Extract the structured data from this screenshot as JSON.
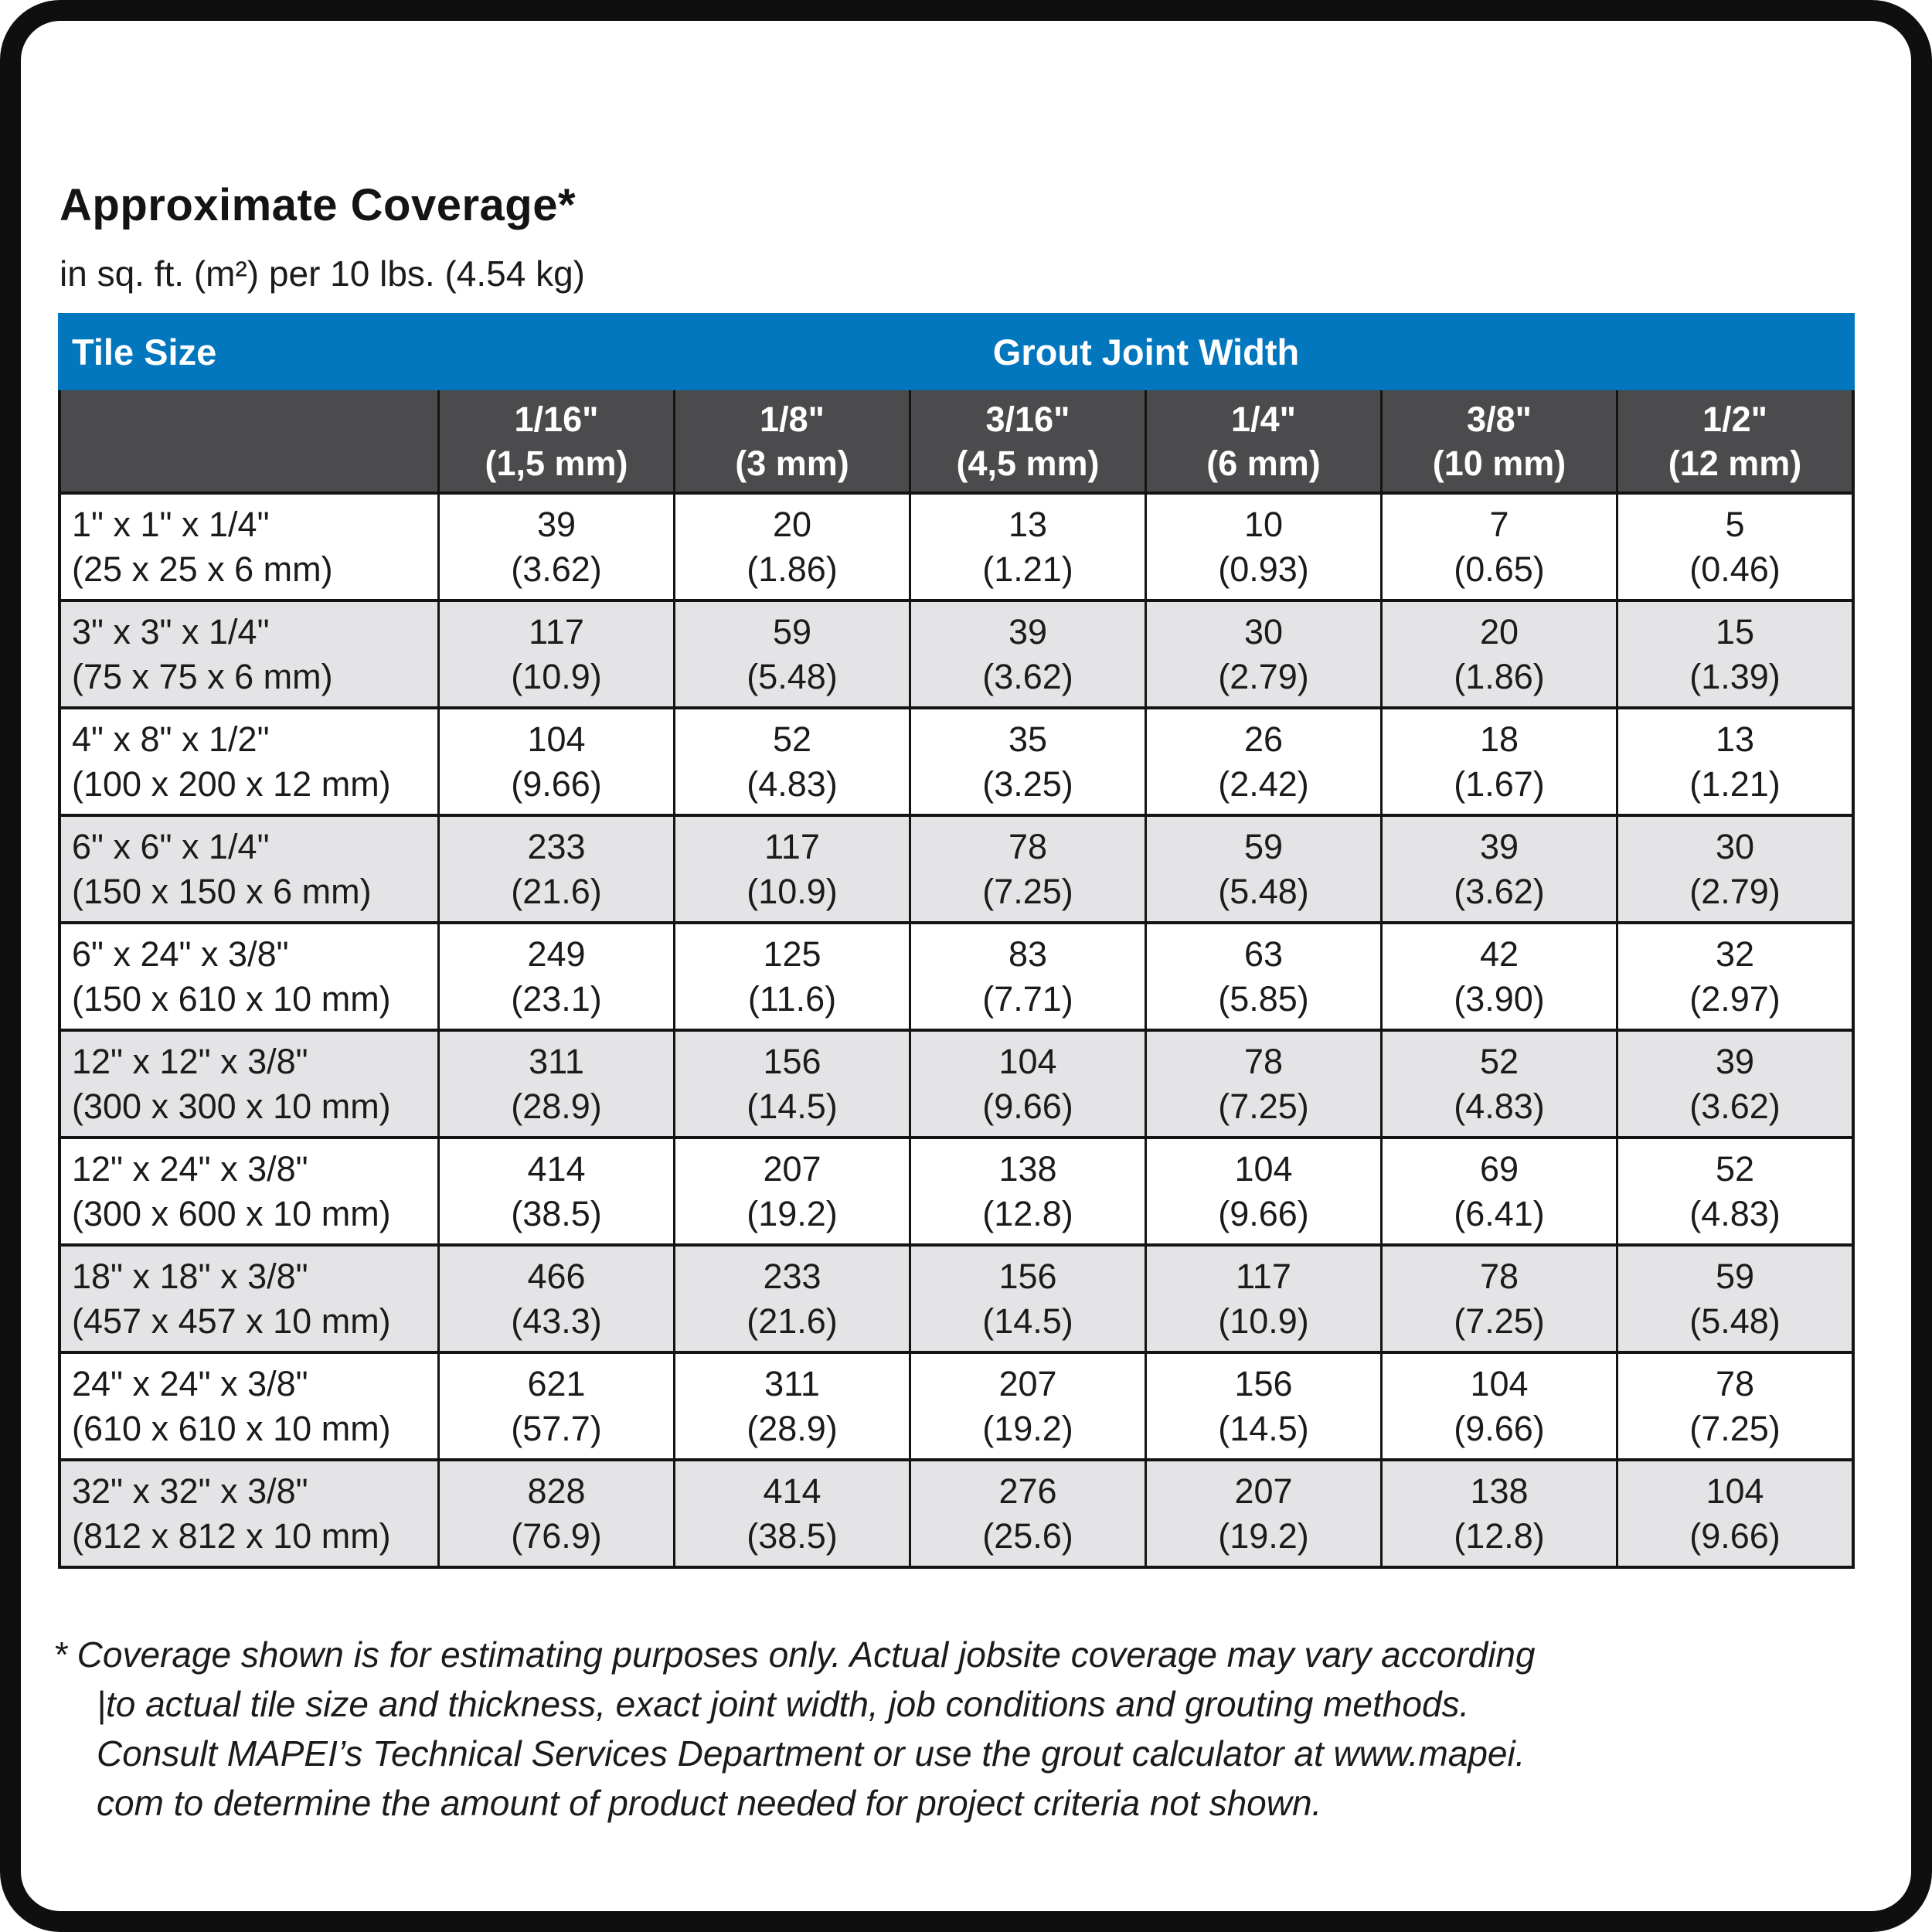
{
  "page": {
    "title": "Approximate Coverage*",
    "subtitle": "in sq. ft. (m²) per 10 lbs. (4.54 kg)"
  },
  "colors": {
    "header_blue": "#0277bd",
    "header_dark_gray": "#4b4b4d",
    "row_stripe_gray": "#e4e4e6",
    "border_black": "#141414"
  },
  "table": {
    "corner_label": "Tile Size",
    "group_header": "Grout Joint Width",
    "columns": [
      {
        "size": "1/16\"",
        "metric": "(1,5 mm)"
      },
      {
        "size": "1/8\"",
        "metric": "(3 mm)"
      },
      {
        "size": "3/16\"",
        "metric": "(4,5 mm)"
      },
      {
        "size": "1/4\"",
        "metric": "(6 mm)"
      },
      {
        "size": "3/8\"",
        "metric": "(10 mm)"
      },
      {
        "size": "1/2\"",
        "metric": "(12 mm)"
      }
    ],
    "rows": [
      {
        "tile": "1\" x 1\" x 1/4\"",
        "tile_metric": "(25 x 25 x 6 mm)",
        "values": [
          [
            "39",
            "(3.62)"
          ],
          [
            "20",
            "(1.86)"
          ],
          [
            "13",
            "(1.21)"
          ],
          [
            "10",
            "(0.93)"
          ],
          [
            "7",
            "(0.65)"
          ],
          [
            "5",
            "(0.46)"
          ]
        ]
      },
      {
        "tile": "3\" x 3\" x 1/4\"",
        "tile_metric": "(75 x 75 x 6 mm)",
        "values": [
          [
            "117",
            "(10.9)"
          ],
          [
            "59",
            "(5.48)"
          ],
          [
            "39",
            "(3.62)"
          ],
          [
            "30",
            "(2.79)"
          ],
          [
            "20",
            "(1.86)"
          ],
          [
            "15",
            "(1.39)"
          ]
        ]
      },
      {
        "tile": "4\" x 8\" x 1/2\"",
        "tile_metric": "(100 x 200 x 12 mm)",
        "values": [
          [
            "104",
            "(9.66)"
          ],
          [
            "52",
            "(4.83)"
          ],
          [
            "35",
            "(3.25)"
          ],
          [
            "26",
            "(2.42)"
          ],
          [
            "18",
            "(1.67)"
          ],
          [
            "13",
            "(1.21)"
          ]
        ]
      },
      {
        "tile": "6\" x 6\" x 1/4\"",
        "tile_metric": "(150 x 150 x 6 mm)",
        "values": [
          [
            "233",
            "(21.6)"
          ],
          [
            "117",
            "(10.9)"
          ],
          [
            "78",
            "(7.25)"
          ],
          [
            "59",
            "(5.48)"
          ],
          [
            "39",
            "(3.62)"
          ],
          [
            "30",
            "(2.79)"
          ]
        ]
      },
      {
        "tile": "6\" x 24\" x 3/8\"",
        "tile_metric": "(150 x 610 x 10 mm)",
        "values": [
          [
            "249",
            "(23.1)"
          ],
          [
            "125",
            "(11.6)"
          ],
          [
            "83",
            "(7.71)"
          ],
          [
            "63",
            "(5.85)"
          ],
          [
            "42",
            "(3.90)"
          ],
          [
            "32",
            "(2.97)"
          ]
        ]
      },
      {
        "tile": "12\" x 12\" x 3/8\"",
        "tile_metric": "(300 x 300 x 10 mm)",
        "values": [
          [
            "311",
            "(28.9)"
          ],
          [
            "156",
            "(14.5)"
          ],
          [
            "104",
            "(9.66)"
          ],
          [
            "78",
            "(7.25)"
          ],
          [
            "52",
            "(4.83)"
          ],
          [
            "39",
            "(3.62)"
          ]
        ]
      },
      {
        "tile": "12\" x 24\" x 3/8\"",
        "tile_metric": "(300 x 600 x 10 mm)",
        "values": [
          [
            "414",
            "(38.5)"
          ],
          [
            "207",
            "(19.2)"
          ],
          [
            "138",
            "(12.8)"
          ],
          [
            "104",
            "(9.66)"
          ],
          [
            "69",
            "(6.41)"
          ],
          [
            "52",
            "(4.83)"
          ]
        ]
      },
      {
        "tile": "18\" x 18\" x 3/8\"",
        "tile_metric": "(457 x 457 x 10 mm)",
        "values": [
          [
            "466",
            "(43.3)"
          ],
          [
            "233",
            "(21.6)"
          ],
          [
            "156",
            "(14.5)"
          ],
          [
            "117",
            "(10.9)"
          ],
          [
            "78",
            "(7.25)"
          ],
          [
            "59",
            "(5.48)"
          ]
        ]
      },
      {
        "tile": "24\" x 24\" x 3/8\"",
        "tile_metric": "(610 x 610 x 10 mm)",
        "values": [
          [
            "621",
            "(57.7)"
          ],
          [
            "311",
            "(28.9)"
          ],
          [
            "207",
            "(19.2)"
          ],
          [
            "156",
            "(14.5)"
          ],
          [
            "104",
            "(9.66)"
          ],
          [
            "78",
            "(7.25)"
          ]
        ]
      },
      {
        "tile": "32\" x 32\" x 3/8\"",
        "tile_metric": "(812 x 812 x 10 mm)",
        "values": [
          [
            "828",
            "(76.9)"
          ],
          [
            "414",
            "(38.5)"
          ],
          [
            "276",
            "(25.6)"
          ],
          [
            "207",
            "(19.2)"
          ],
          [
            "138",
            "(12.8)"
          ],
          [
            "104",
            "(9.66)"
          ]
        ]
      }
    ]
  },
  "footnote": {
    "lines": [
      "* Coverage shown is for estimating purposes only. Actual jobsite coverage may vary according",
      "|to actual tile size and thickness, exact joint width, job conditions and grouting methods.",
      "Consult MAPEI’s Technical Services Department or use the grout calculator at www.mapei.",
      "com to determine the amount of product needed for project criteria not shown."
    ]
  }
}
